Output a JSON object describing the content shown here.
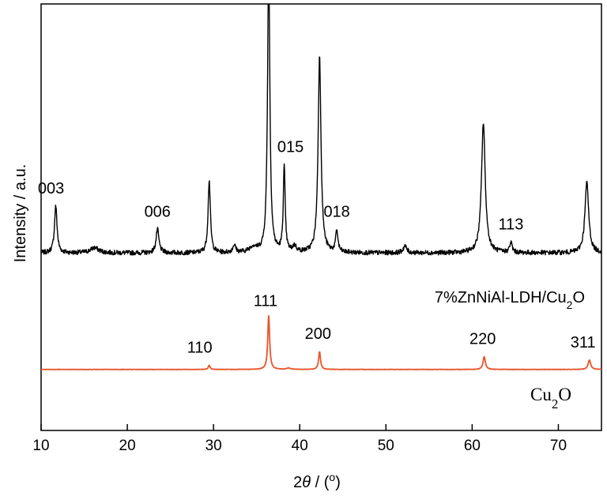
{
  "chart_data": {
    "type": "line",
    "title": "",
    "xlabel": "2θ / (°)",
    "xlabel_parts": {
      "theta_prefix": "2",
      "theta": "θ",
      "unit_open": " / (",
      "degree": "o",
      "unit_close": ")"
    },
    "ylabel": "Intensity / a.u.",
    "xlim": [
      10,
      75
    ],
    "ylim": [
      0,
      100
    ],
    "y_ticks_shown": false,
    "grid": false,
    "xticks": [
      10,
      20,
      30,
      40,
      50,
      60,
      70
    ],
    "xtick_labels": [
      "10",
      "20",
      "30",
      "40",
      "50",
      "60",
      "70"
    ],
    "series": [
      {
        "name": "7%ZnNiAl-LDH/Cu₂O",
        "label_base": "7%ZnNiAl-LDH/Cu",
        "label_sub": "2",
        "label_tail": "O",
        "color": "#000000",
        "baseline": 41.6,
        "noise": 0.55,
        "peaks": [
          {
            "x": 11.7,
            "height": 11.0,
            "width": 0.18
          },
          {
            "x": 16.2,
            "height": 1.2,
            "width": 0.6
          },
          {
            "x": 23.5,
            "height": 5.5,
            "width": 0.2
          },
          {
            "x": 29.5,
            "height": 17.0,
            "width": 0.16
          },
          {
            "x": 32.4,
            "height": 1.8,
            "width": 0.2
          },
          {
            "x": 34.6,
            "height": 1.3,
            "width": 0.5
          },
          {
            "x": 36.4,
            "height": 68.0,
            "width": 0.16
          },
          {
            "x": 38.2,
            "height": 20.0,
            "width": 0.13
          },
          {
            "x": 39.4,
            "height": 1.4,
            "width": 0.25
          },
          {
            "x": 42.3,
            "height": 46.0,
            "width": 0.2
          },
          {
            "x": 44.3,
            "height": 5.0,
            "width": 0.16
          },
          {
            "x": 52.2,
            "height": 1.6,
            "width": 0.25
          },
          {
            "x": 61.3,
            "height": 30.5,
            "width": 0.26
          },
          {
            "x": 64.5,
            "height": 2.3,
            "width": 0.18
          },
          {
            "x": 73.3,
            "height": 16.5,
            "width": 0.26
          }
        ],
        "hkl_labels": [
          {
            "x": 11.7,
            "label": "003"
          },
          {
            "x": 23.5,
            "label": "006"
          },
          {
            "x": 38.2,
            "label": "015"
          },
          {
            "x": 44.3,
            "label": "018"
          },
          {
            "x": 64.5,
            "label": "113"
          }
        ]
      },
      {
        "name": "Cu₂O",
        "label_base": "Cu",
        "label_sub": "2",
        "label_tail": "O",
        "color": "#e8542b",
        "baseline": 14.3,
        "noise": 0.04,
        "peaks": [
          {
            "x": 29.5,
            "height": 1.0,
            "width": 0.12
          },
          {
            "x": 36.4,
            "height": 12.6,
            "width": 0.13
          },
          {
            "x": 38.7,
            "height": 0.3,
            "width": 0.3
          },
          {
            "x": 42.3,
            "height": 4.2,
            "width": 0.13
          },
          {
            "x": 61.4,
            "height": 3.0,
            "width": 0.16
          },
          {
            "x": 73.6,
            "height": 2.2,
            "width": 0.18
          }
        ],
        "hkl_labels": [
          {
            "x": 29.5,
            "label": "110"
          },
          {
            "x": 36.4,
            "label": "111"
          },
          {
            "x": 42.3,
            "label": "200"
          },
          {
            "x": 61.4,
            "label": "220"
          },
          {
            "x": 73.6,
            "label": "311"
          }
        ]
      }
    ]
  }
}
